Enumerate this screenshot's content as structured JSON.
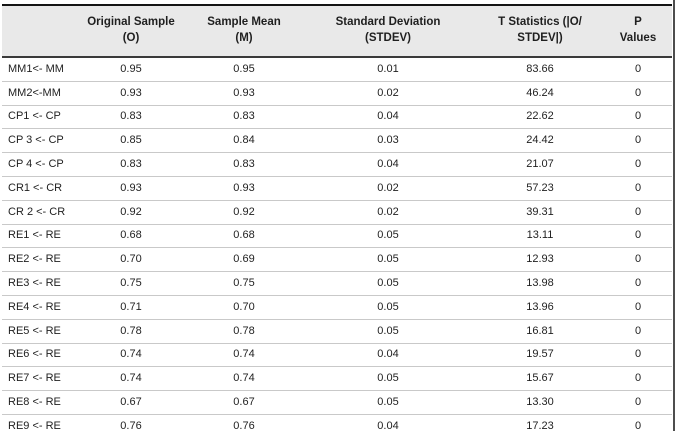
{
  "page": {
    "kind": "statistics-results-table"
  },
  "colors": {
    "background": "#ffffff",
    "header_bg": "#e9e9e9",
    "outer_border": "#141414",
    "header_rule": "#3a3a3a",
    "row_rule": "#c9c9c9",
    "right_edge_line": "#4d4d4d",
    "text": "#1f1f1f"
  },
  "table": {
    "column_keys": [
      "path",
      "original-sample",
      "sample-mean",
      "stdev",
      "t-statistics",
      "p-values"
    ],
    "columns": [
      {
        "label": ""
      },
      {
        "label": "Original Sample\n(O)"
      },
      {
        "label": "Sample Mean\n(M)"
      },
      {
        "label": "Standard Deviation\n(STDEV)"
      },
      {
        "label": "T Statistics (|O/\nSTDEV|)"
      },
      {
        "label": "P\nValues"
      }
    ],
    "rows": [
      [
        "MM1<- MM",
        "0.95",
        "0.95",
        "0.01",
        "83.66",
        "0"
      ],
      [
        "MM2<-MM",
        "0.93",
        "0.93",
        "0.02",
        "46.24",
        "0"
      ],
      [
        "CP1 <- CP",
        "0.83",
        "0.83",
        "0.04",
        "22.62",
        "0"
      ],
      [
        "CP 3 <- CP",
        "0.85",
        "0.84",
        "0.03",
        "24.42",
        "0"
      ],
      [
        "CP 4 <- CP",
        "0.83",
        "0.83",
        "0.04",
        "21.07",
        "0"
      ],
      [
        "CR1 <- CR",
        "0.93",
        "0.93",
        "0.02",
        "57.23",
        "0"
      ],
      [
        "CR 2 <- CR",
        "0.92",
        "0.92",
        "0.02",
        "39.31",
        "0"
      ],
      [
        "RE1 <- RE",
        "0.68",
        "0.68",
        "0.05",
        "13.11",
        "0"
      ],
      [
        "RE2 <- RE",
        "0.70",
        "0.69",
        "0.05",
        "12.93",
        "0"
      ],
      [
        "RE3 <- RE",
        "0.75",
        "0.75",
        "0.05",
        "13.98",
        "0"
      ],
      [
        "RE4 <- RE",
        "0.71",
        "0.70",
        "0.05",
        "13.96",
        "0"
      ],
      [
        "RE5 <- RE",
        "0.78",
        "0.78",
        "0.05",
        "16.81",
        "0"
      ],
      [
        "RE6 <- RE",
        "0.74",
        "0.74",
        "0.04",
        "19.57",
        "0"
      ],
      [
        "RE7 <- RE",
        "0.74",
        "0.74",
        "0.05",
        "15.67",
        "0"
      ],
      [
        "RE8 <- RE",
        "0.67",
        "0.67",
        "0.05",
        "13.30",
        "0"
      ],
      [
        "RE9 <- RE",
        "0.76",
        "0.76",
        "0.04",
        "17.23",
        "0"
      ]
    ]
  }
}
